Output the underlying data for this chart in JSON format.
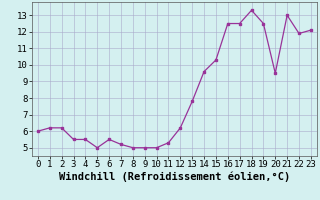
{
  "x": [
    0,
    1,
    2,
    3,
    4,
    5,
    6,
    7,
    8,
    9,
    10,
    11,
    12,
    13,
    14,
    15,
    16,
    17,
    18,
    19,
    20,
    21,
    22,
    23
  ],
  "y": [
    6.0,
    6.2,
    6.2,
    5.5,
    5.5,
    5.0,
    5.5,
    5.2,
    5.0,
    5.0,
    5.0,
    5.3,
    6.2,
    7.8,
    9.6,
    10.3,
    12.5,
    12.5,
    13.3,
    12.5,
    9.5,
    13.0,
    11.9,
    12.1
  ],
  "xlabel": "Windchill (Refroidissement éolien,°C)",
  "ylim": [
    4.5,
    13.8
  ],
  "xlim": [
    -0.5,
    23.5
  ],
  "yticks": [
    5,
    6,
    7,
    8,
    9,
    10,
    11,
    12,
    13
  ],
  "xticks": [
    0,
    1,
    2,
    3,
    4,
    5,
    6,
    7,
    8,
    9,
    10,
    11,
    12,
    13,
    14,
    15,
    16,
    17,
    18,
    19,
    20,
    21,
    22,
    23
  ],
  "line_color": "#993399",
  "marker": "s",
  "marker_size": 2,
  "bg_color": "#d4f0f0",
  "grid_color": "#aaaacc",
  "xlabel_fontsize": 7.5,
  "tick_fontsize": 6.5
}
